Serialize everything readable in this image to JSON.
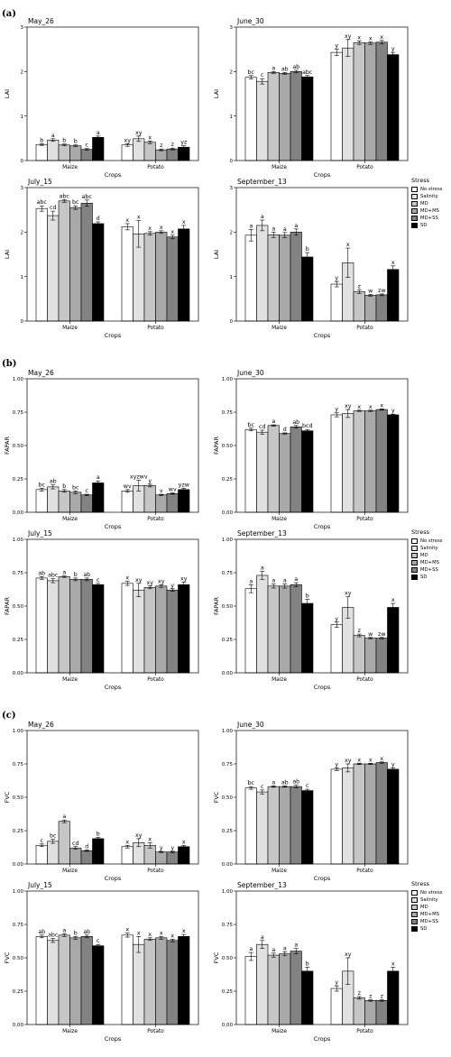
{
  "groups": [
    "Maize",
    "Potato"
  ],
  "xlabel": "Crops",
  "legend": {
    "title": "Stress",
    "items": [
      "No stress",
      "Salinity",
      "MD",
      "MD+MS",
      "MD+SS",
      "SD"
    ],
    "colors": [
      "#ffffff",
      "#e1e1e1",
      "#c6c6c6",
      "#a9a9a9",
      "#828282",
      "#000000"
    ]
  },
  "chart_data": [
    {
      "panel": "(a)",
      "type": "bar",
      "ylabel": "LAI",
      "ylim": [
        0,
        3
      ],
      "yticks": [
        "0",
        "1",
        "2",
        "3"
      ],
      "subplots": [
        {
          "title": "May_26",
          "values": [
            [
              0.36,
              0.46,
              0.35,
              0.33,
              0.25,
              0.52
            ],
            [
              0.35,
              0.49,
              0.41,
              0.24,
              0.26,
              0.3
            ]
          ],
          "errors": [
            [
              0.02,
              0.03,
              0.02,
              0.02,
              0.02,
              0.03
            ],
            [
              0.03,
              0.06,
              0.03,
              0.02,
              0.02,
              0.03
            ]
          ],
          "letters": [
            [
              "b",
              "a",
              "b",
              "b",
              "c",
              "a"
            ],
            [
              "xy",
              "xy",
              "x",
              "z",
              "z",
              "yz"
            ]
          ]
        },
        {
          "title": "June_30",
          "values": [
            [
              1.87,
              1.78,
              1.98,
              1.96,
              2.0,
              1.88
            ],
            [
              2.43,
              2.53,
              2.65,
              2.64,
              2.66,
              2.38
            ]
          ],
          "errors": [
            [
              0.04,
              0.06,
              0.02,
              0.02,
              0.03,
              0.03
            ],
            [
              0.07,
              0.19,
              0.04,
              0.03,
              0.04,
              0.05
            ]
          ],
          "letters": [
            [
              "bc",
              "c",
              "a",
              "ab",
              "ab",
              "abc"
            ],
            [
              "y",
              "xy",
              "x",
              "x",
              "x",
              "y"
            ]
          ]
        },
        {
          "title": "July_15",
          "values": [
            [
              2.53,
              2.37,
              2.7,
              2.55,
              2.65,
              2.19
            ],
            [
              2.12,
              1.96,
              1.97,
              2.0,
              1.89,
              2.07
            ]
          ],
          "errors": [
            [
              0.06,
              0.1,
              0.03,
              0.04,
              0.07,
              0.04
            ],
            [
              0.07,
              0.3,
              0.04,
              0.03,
              0.04,
              0.08
            ]
          ],
          "letters": [
            [
              "abc",
              "cd",
              "abc",
              "bc",
              "abc",
              "d"
            ],
            [
              "x",
              "x",
              "x",
              "x",
              "x",
              "x"
            ]
          ]
        },
        {
          "title": "September_13",
          "values": [
            [
              1.93,
              2.15,
              1.94,
              1.93,
              2.0,
              1.44
            ],
            [
              0.83,
              1.31,
              0.66,
              0.58,
              0.59,
              1.16
            ]
          ],
          "errors": [
            [
              0.13,
              0.12,
              0.06,
              0.06,
              0.07,
              0.1
            ],
            [
              0.06,
              0.33,
              0.04,
              0.02,
              0.02,
              0.08
            ]
          ],
          "letters": [
            [
              "a",
              "a",
              "a",
              "a",
              "a",
              "b"
            ],
            [
              "y",
              "x",
              "z",
              "w",
              "zw",
              "x"
            ]
          ]
        }
      ]
    },
    {
      "panel": "(b)",
      "type": "bar",
      "ylabel": "FAPAR",
      "ylim": [
        0,
        1
      ],
      "yticks": [
        "0.00",
        "0.25",
        "0.50",
        "0.75",
        "1.00"
      ],
      "subplots": [
        {
          "title": "May_26",
          "values": [
            [
              0.17,
              0.19,
              0.16,
              0.15,
              0.13,
              0.22
            ],
            [
              0.16,
              0.2,
              0.2,
              0.13,
              0.14,
              0.17
            ]
          ],
          "errors": [
            [
              0.01,
              0.015,
              0.01,
              0.01,
              0.005,
              0.015
            ],
            [
              0.01,
              0.04,
              0.01,
              0.005,
              0.005,
              0.01
            ]
          ],
          "letters": [
            [
              "bc",
              "ab",
              "b",
              "bc",
              "c",
              "a"
            ],
            [
              "wv",
              "xyzwv",
              "y",
              "v",
              "wv",
              "yzw"
            ]
          ]
        },
        {
          "title": "June_30",
          "values": [
            [
              0.62,
              0.6,
              0.65,
              0.59,
              0.64,
              0.61
            ],
            [
              0.73,
              0.74,
              0.76,
              0.76,
              0.77,
              0.73
            ]
          ],
          "errors": [
            [
              0.01,
              0.015,
              0.005,
              0.005,
              0.01,
              0.01
            ],
            [
              0.015,
              0.03,
              0.005,
              0.005,
              0.005,
              0.005
            ]
          ],
          "letters": [
            [
              "bc",
              "cd",
              "a",
              "d",
              "ab",
              "bcd"
            ],
            [
              "y",
              "xy",
              "x",
              "x",
              "x",
              "y"
            ]
          ]
        },
        {
          "title": "July_15",
          "values": [
            [
              0.71,
              0.69,
              0.72,
              0.7,
              0.7,
              0.66
            ],
            [
              0.67,
              0.62,
              0.64,
              0.65,
              0.62,
              0.66
            ]
          ],
          "errors": [
            [
              0.01,
              0.015,
              0.005,
              0.01,
              0.01,
              0.01
            ],
            [
              0.015,
              0.05,
              0.01,
              0.01,
              0.01,
              0.02
            ]
          ],
          "letters": [
            [
              "ab",
              "abc",
              "a",
              "b",
              "ab",
              "c"
            ],
            [
              "x",
              "xy",
              "xy",
              "xy",
              "y",
              "xy"
            ]
          ]
        },
        {
          "title": "September_13",
          "values": [
            [
              0.63,
              0.73,
              0.65,
              0.65,
              0.66,
              0.52
            ],
            [
              0.36,
              0.49,
              0.28,
              0.26,
              0.26,
              0.49
            ]
          ],
          "errors": [
            [
              0.03,
              0.03,
              0.015,
              0.015,
              0.015,
              0.03
            ],
            [
              0.02,
              0.08,
              0.01,
              0.005,
              0.005,
              0.03
            ]
          ],
          "letters": [
            [
              "a",
              "a",
              "a",
              "a",
              "a",
              "b"
            ],
            [
              "y",
              "xy",
              "z",
              "w",
              "zw",
              "x"
            ]
          ]
        }
      ]
    },
    {
      "panel": "(c)",
      "type": "bar",
      "ylabel": "FVC",
      "ylim": [
        0,
        1
      ],
      "yticks": [
        "0.00",
        "0.25",
        "0.50",
        "0.75",
        "1.00"
      ],
      "subplots": [
        {
          "title": "May_26",
          "values": [
            [
              0.14,
              0.17,
              0.32,
              0.12,
              0.1,
              0.19
            ],
            [
              0.13,
              0.16,
              0.14,
              0.09,
              0.09,
              0.13
            ]
          ],
          "errors": [
            [
              0.01,
              0.015,
              0.01,
              0.01,
              0.005,
              0.01
            ],
            [
              0.01,
              0.03,
              0.02,
              0.005,
              0.005,
              0.01
            ]
          ],
          "letters": [
            [
              "c",
              "bc",
              "a",
              "cd",
              "d",
              "b"
            ],
            [
              "x",
              "xy",
              "x",
              "y",
              "y",
              "x"
            ]
          ]
        },
        {
          "title": "June_30",
          "values": [
            [
              0.57,
              0.54,
              0.58,
              0.58,
              0.58,
              0.55
            ],
            [
              0.71,
              0.72,
              0.75,
              0.75,
              0.76,
              0.71
            ]
          ],
          "errors": [
            [
              0.01,
              0.015,
              0.005,
              0.005,
              0.01,
              0.01
            ],
            [
              0.01,
              0.03,
              0.005,
              0.005,
              0.005,
              0.01
            ]
          ],
          "letters": [
            [
              "bc",
              "c",
              "a",
              "ab",
              "ab",
              "c"
            ],
            [
              "y",
              "xy",
              "x",
              "x",
              "x",
              "y"
            ]
          ]
        },
        {
          "title": "July_15",
          "values": [
            [
              0.66,
              0.63,
              0.67,
              0.65,
              0.66,
              0.59
            ],
            [
              0.67,
              0.6,
              0.64,
              0.65,
              0.63,
              0.66
            ]
          ],
          "errors": [
            [
              0.01,
              0.015,
              0.01,
              0.01,
              0.01,
              0.01
            ],
            [
              0.015,
              0.06,
              0.01,
              0.01,
              0.01,
              0.015
            ]
          ],
          "letters": [
            [
              "ab",
              "abc",
              "a",
              "b",
              "ab",
              "c"
            ],
            [
              "x",
              "x",
              "x",
              "x",
              "x",
              "x"
            ]
          ]
        },
        {
          "title": "September_13",
          "values": [
            [
              0.51,
              0.6,
              0.52,
              0.53,
              0.55,
              0.4
            ],
            [
              0.27,
              0.4,
              0.2,
              0.18,
              0.18,
              0.4
            ]
          ],
          "errors": [
            [
              0.03,
              0.03,
              0.015,
              0.015,
              0.02,
              0.03
            ],
            [
              0.02,
              0.1,
              0.01,
              0.005,
              0.005,
              0.03
            ]
          ],
          "letters": [
            [
              "a",
              "a",
              "a",
              "a",
              "a",
              "b"
            ],
            [
              "y",
              "xy",
              "z",
              "z",
              "z",
              "x"
            ]
          ]
        }
      ]
    }
  ]
}
